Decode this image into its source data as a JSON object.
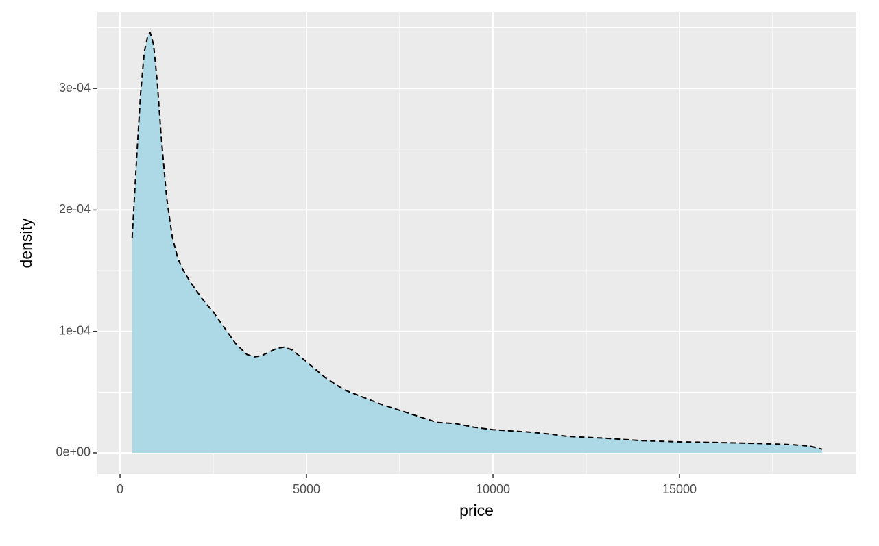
{
  "chart_data": {
    "type": "area",
    "x_label": "price",
    "y_label": "density",
    "x": [
      326,
      450,
      550,
      650,
      750,
      810,
      900,
      1000,
      1100,
      1250,
      1400,
      1550,
      1700,
      1900,
      2200,
      2500,
      2800,
      3100,
      3400,
      3600,
      3800,
      4000,
      4200,
      4400,
      4600,
      4800,
      5000,
      5500,
      6000,
      6500,
      7000,
      7500,
      8000,
      8500,
      9000,
      9500,
      10000,
      10500,
      11000,
      11500,
      12000,
      13000,
      14000,
      15000,
      16000,
      17000,
      18000,
      18500,
      18823
    ],
    "values": [
      0.000177,
      0.000245,
      0.000295,
      0.00033,
      0.000344,
      0.000346,
      0.000336,
      0.000305,
      0.000262,
      0.00021,
      0.000178,
      0.00016,
      0.00015,
      0.00014,
      0.000127,
      0.000116,
      0.000103,
      9e-05,
      8.1e-05,
      7.9e-05,
      8e-05,
      8.3e-05,
      8.6e-05,
      8.7e-05,
      8.5e-05,
      8e-05,
      7.5e-05,
      6.2e-05,
      5.2e-05,
      4.6e-05,
      4e-05,
      3.5e-05,
      3e-05,
      2.5e-05,
      2.4e-05,
      2.1e-05,
      1.9e-05,
      1.8e-05,
      1.7e-05,
      1.55e-05,
      1.35e-05,
      1.2e-05,
      1e-05,
      9e-06,
      8.5e-06,
      7.8e-06,
      6.8e-06,
      5.5e-06,
      3e-06
    ],
    "fill_color": "#add8e6",
    "line_color": "#000000",
    "line_style": "dashed",
    "xlim": [
      -607,
      19743
    ],
    "ylim": [
      -1.75e-05,
      0.0003627
    ],
    "xticks": [
      0,
      5000,
      10000,
      15000
    ],
    "x_minor_ticks": [
      2500,
      7500,
      12500,
      17500
    ],
    "yticks": [
      {
        "value": 0,
        "label": "0e+00"
      },
      {
        "value": 0.0001,
        "label": "1e-04"
      },
      {
        "value": 0.0002,
        "label": "2e-04"
      },
      {
        "value": 0.0003,
        "label": "3e-04"
      }
    ],
    "y_minor_ticks": [
      5e-05,
      0.00015,
      0.00025,
      0.00035
    ],
    "grid": true
  }
}
